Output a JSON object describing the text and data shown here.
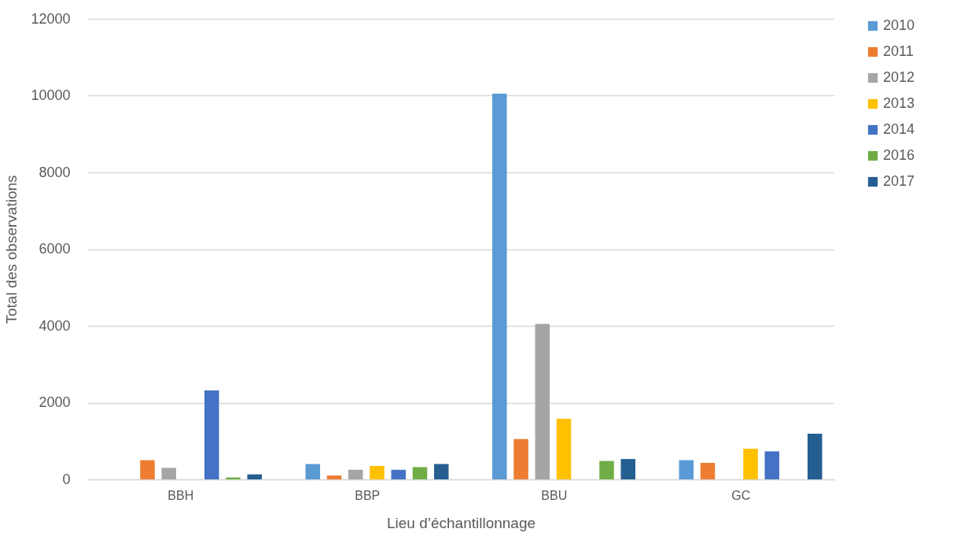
{
  "chart_data": {
    "type": "bar",
    "xlabel": "Lieu d’échantillonnage",
    "ylabel": "Total des observations",
    "categories": [
      "BBH",
      "BBP",
      "BBU",
      "GC"
    ],
    "series": [
      {
        "name": "2010",
        "color": "#5b9bd5",
        "values": [
          null,
          400,
          10050,
          500
        ]
      },
      {
        "name": "2011",
        "color": "#ed7d31",
        "values": [
          500,
          100,
          1050,
          430
        ]
      },
      {
        "name": "2012",
        "color": "#a5a5a5",
        "values": [
          300,
          250,
          4050,
          null
        ]
      },
      {
        "name": "2013",
        "color": "#ffc000",
        "values": [
          null,
          350,
          1580,
          800
        ]
      },
      {
        "name": "2014",
        "color": "#4472c4",
        "values": [
          2320,
          250,
          null,
          730
        ]
      },
      {
        "name": "2016",
        "color": "#70ad47",
        "values": [
          50,
          320,
          480,
          null
        ]
      },
      {
        "name": "2017",
        "color": "#255e91",
        "values": [
          130,
          400,
          530,
          1190
        ]
      }
    ],
    "ylim": [
      0,
      12000
    ],
    "yticks": [
      0,
      2000,
      4000,
      6000,
      8000,
      10000,
      12000
    ],
    "grid": "y",
    "legend": "right"
  }
}
